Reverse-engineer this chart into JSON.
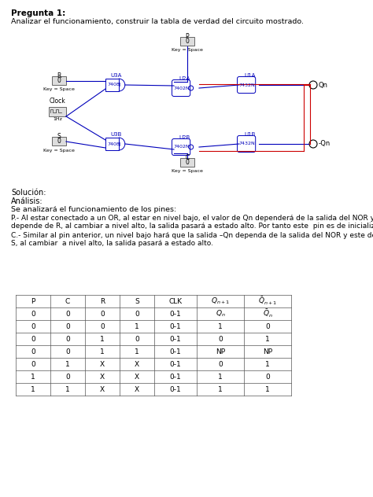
{
  "title": "Pregunta 1:",
  "subtitle": "Analizar el funcionamiento, construir la tabla de verdad del circuito mostrado.",
  "solucion_label": "Solución:",
  "analisis_label": "Análisis:",
  "analysis_text": "Se analizará el funcionamiento de los pines:",
  "p_text": "P.- Al estar conectado a un OR, al estar en nivel bajo, el valor de Qn dependerá de la salida del NOR y este\ndepende de R, al cambiar a nivel alto, la salida pasará a estado alto. Por tanto este  pin es de inicialización.",
  "c_text": "C.- Similar al pin anterior, un nivel bajo hará que la salida –Qn dependa de la salida del NOR y este depende de\nS, al cambiar  a nivel alto, la salida pasará a estado alto.",
  "table_rows": [
    [
      "0",
      "0",
      "0",
      "0",
      "0-1",
      "Q_n",
      "Q_n_bar"
    ],
    [
      "0",
      "0",
      "0",
      "1",
      "0-1",
      "1",
      "0"
    ],
    [
      "0",
      "0",
      "1",
      "0",
      "0-1",
      "0",
      "1"
    ],
    [
      "0",
      "0",
      "1",
      "1",
      "0-1",
      "NP",
      "NP"
    ],
    [
      "0",
      "1",
      "X",
      "X",
      "0-1",
      "0",
      "1"
    ],
    [
      "1",
      "0",
      "X",
      "X",
      "0-1",
      "1",
      "0"
    ],
    [
      "1",
      "1",
      "X",
      "X",
      "0-1",
      "1",
      "1"
    ]
  ],
  "bg_color": "#ffffff",
  "text_color": "#000000",
  "gate_color": "#0000bb",
  "wire_color_blue": "#0000bb",
  "wire_color_red": "#cc0000"
}
